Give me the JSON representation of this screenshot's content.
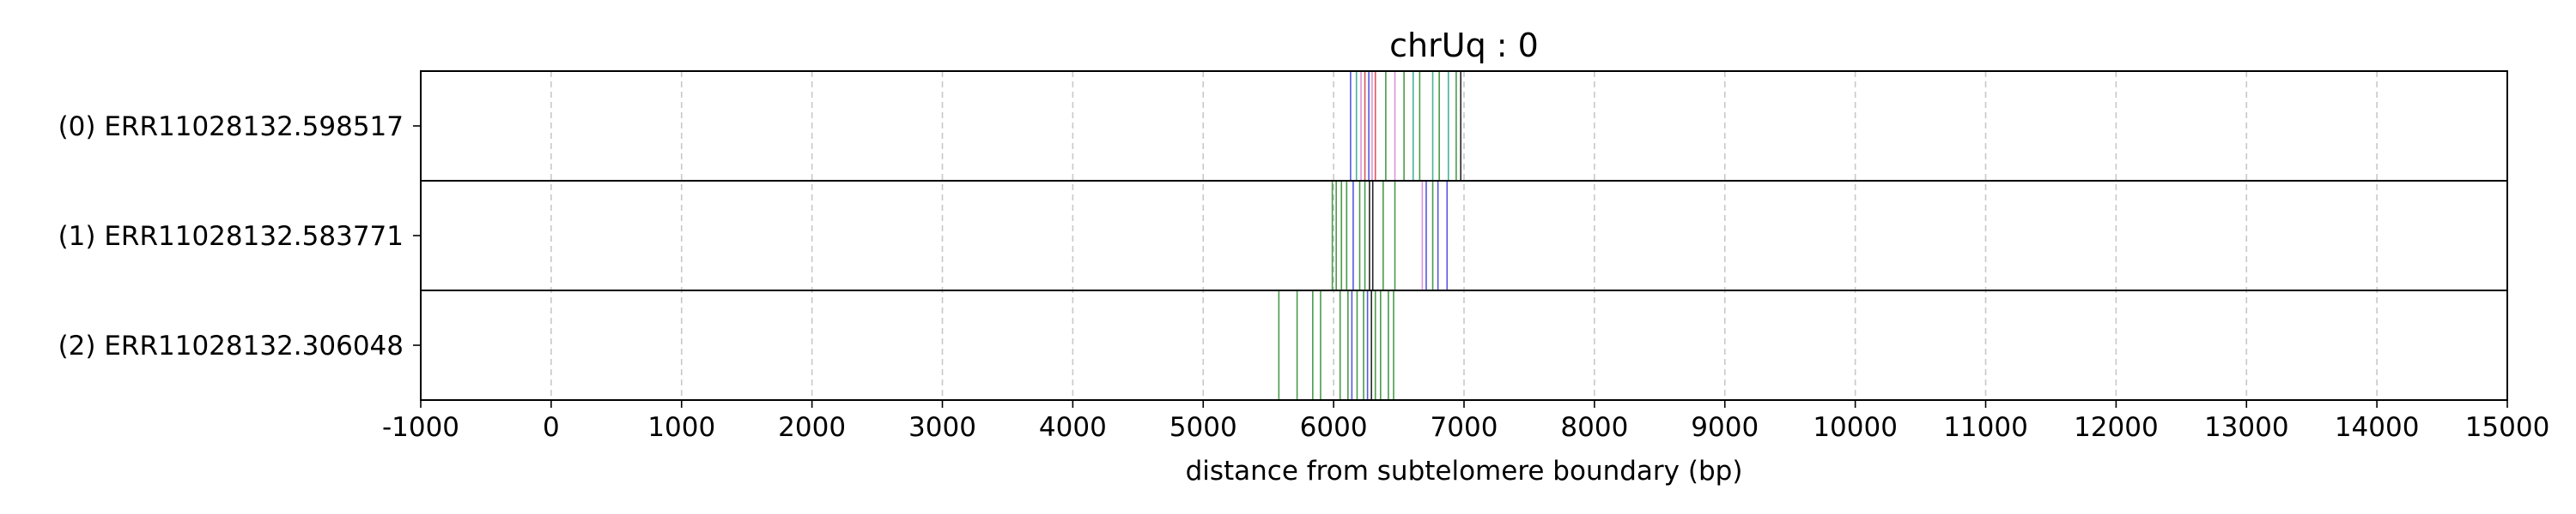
{
  "chart_data": {
    "type": "scatter",
    "title": "chrUq : 0",
    "xlabel": "distance from subtelomere boundary (bp)",
    "ylabel": "",
    "xlim": [
      -1000,
      15000
    ],
    "xticks": [
      -1000,
      0,
      1000,
      2000,
      3000,
      4000,
      5000,
      6000,
      7000,
      8000,
      9000,
      10000,
      11000,
      12000,
      13000,
      14000,
      15000
    ],
    "grid": "x-dashed",
    "colors": {
      "green": "#2a8a2a",
      "blue": "#3b3bd6",
      "red": "#d43b3b",
      "pink": "#d680d6",
      "teal": "#2aa38a",
      "black": "#000000",
      "grid": "#c8c8c8"
    },
    "rows": [
      {
        "label": "(0) ERR11028132.598517",
        "marks": [
          {
            "x": 6130,
            "color": "blue"
          },
          {
            "x": 6175,
            "color": "teal"
          },
          {
            "x": 6210,
            "color": "pink"
          },
          {
            "x": 6240,
            "color": "red"
          },
          {
            "x": 6270,
            "color": "blue"
          },
          {
            "x": 6295,
            "color": "pink"
          },
          {
            "x": 6320,
            "color": "red"
          },
          {
            "x": 6400,
            "color": "green"
          },
          {
            "x": 6470,
            "color": "pink"
          },
          {
            "x": 6540,
            "color": "green"
          },
          {
            "x": 6610,
            "color": "teal"
          },
          {
            "x": 6660,
            "color": "green"
          },
          {
            "x": 6760,
            "color": "teal"
          },
          {
            "x": 6810,
            "color": "green"
          },
          {
            "x": 6880,
            "color": "teal"
          },
          {
            "x": 6940,
            "color": "green"
          },
          {
            "x": 6975,
            "color": "black"
          }
        ]
      },
      {
        "label": "(1) ERR11028132.583771",
        "marks": [
          {
            "x": 5990,
            "color": "green"
          },
          {
            "x": 6020,
            "color": "green"
          },
          {
            "x": 6060,
            "color": "green"
          },
          {
            "x": 6100,
            "color": "green"
          },
          {
            "x": 6150,
            "color": "blue"
          },
          {
            "x": 6200,
            "color": "green"
          },
          {
            "x": 6240,
            "color": "green"
          },
          {
            "x": 6275,
            "color": "black"
          },
          {
            "x": 6300,
            "color": "black"
          },
          {
            "x": 6380,
            "color": "green"
          },
          {
            "x": 6470,
            "color": "green"
          },
          {
            "x": 6680,
            "color": "pink"
          },
          {
            "x": 6710,
            "color": "blue"
          },
          {
            "x": 6760,
            "color": "green"
          },
          {
            "x": 6800,
            "color": "blue"
          },
          {
            "x": 6870,
            "color": "blue"
          }
        ]
      },
      {
        "label": "(2) ERR11028132.306048",
        "marks": [
          {
            "x": 5580,
            "color": "green"
          },
          {
            "x": 5720,
            "color": "green"
          },
          {
            "x": 5840,
            "color": "green"
          },
          {
            "x": 5900,
            "color": "green"
          },
          {
            "x": 6050,
            "color": "green"
          },
          {
            "x": 6110,
            "color": "green"
          },
          {
            "x": 6140,
            "color": "blue"
          },
          {
            "x": 6180,
            "color": "green"
          },
          {
            "x": 6230,
            "color": "green"
          },
          {
            "x": 6260,
            "color": "blue"
          },
          {
            "x": 6290,
            "color": "black"
          },
          {
            "x": 6320,
            "color": "green"
          },
          {
            "x": 6360,
            "color": "green"
          },
          {
            "x": 6420,
            "color": "green"
          },
          {
            "x": 6460,
            "color": "green"
          }
        ]
      }
    ]
  }
}
